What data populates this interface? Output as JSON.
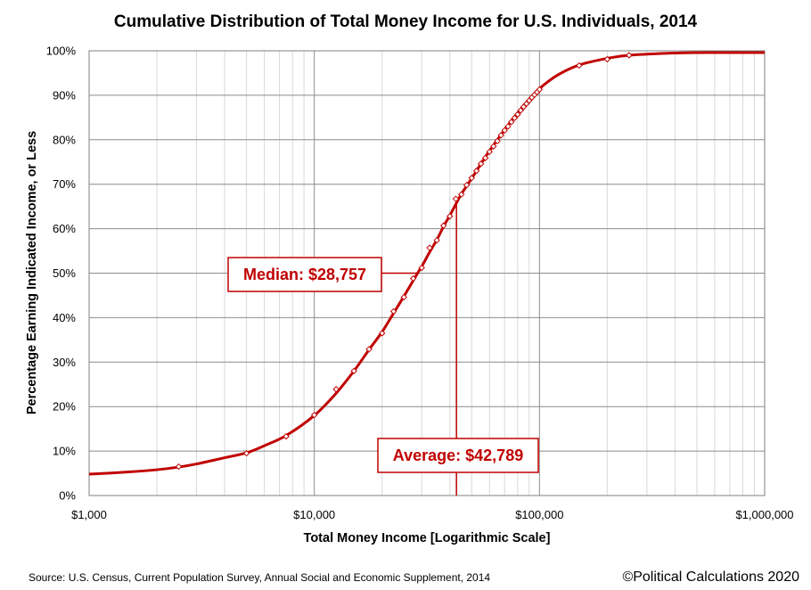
{
  "chart_data": {
    "type": "line",
    "title": "Cumulative Distribution of Total Money Income for U.S. Individuals, 2014",
    "xlabel": "Total Money Income [Logarithmic Scale]",
    "ylabel": "Percentage Earning Indicated Income, or Less",
    "x_scale": "log",
    "xlim": [
      1000,
      1000000
    ],
    "ylim": [
      0,
      100
    ],
    "x_tick_values": [
      1000,
      10000,
      100000,
      1000000
    ],
    "x_tick_labels": [
      "$1,000",
      "$10,000",
      "$100,000",
      "$1,000,000"
    ],
    "y_tick_values": [
      0,
      10,
      20,
      30,
      40,
      50,
      60,
      70,
      80,
      90,
      100
    ],
    "y_tick_labels": [
      "0%",
      "10%",
      "20%",
      "30%",
      "40%",
      "50%",
      "60%",
      "70%",
      "80%",
      "90%",
      "100%"
    ],
    "grid": true,
    "legend": "none",
    "colors": {
      "curve": "#c00000",
      "marker_fill": "#ffffff",
      "marker_stroke": "#c00000",
      "grid_major": "#8c8c8c",
      "grid_minor": "#d9d9d9"
    },
    "series": [
      {
        "style": "smooth-line",
        "x": [
          1000,
          1500,
          2000,
          2500,
          3000,
          4000,
          5000,
          6000,
          7500,
          10000,
          12500,
          15000,
          17500,
          20000,
          22500,
          25000,
          28757,
          30000,
          32500,
          35000,
          37500,
          40000,
          42500,
          45000,
          50000,
          55000,
          60000,
          70000,
          80000,
          90000,
          100000,
          120000,
          150000,
          200000,
          250000,
          400000,
          600000,
          1000000
        ],
        "y": [
          4.8,
          5.3,
          5.8,
          6.4,
          7.1,
          8.5,
          9.6,
          11.2,
          13.5,
          18.0,
          23.0,
          28.0,
          32.8,
          36.8,
          41.0,
          44.8,
          50.0,
          51.5,
          54.7,
          57.5,
          60.5,
          63.0,
          65.5,
          67.8,
          71.3,
          74.6,
          77.5,
          82.2,
          86.0,
          89.0,
          91.5,
          94.5,
          96.8,
          98.3,
          99.0,
          99.5,
          99.6,
          99.6
        ]
      },
      {
        "style": "markers",
        "x": [
          2500,
          5000,
          7500,
          10000,
          12500,
          15000,
          17500,
          20000,
          22500,
          25000,
          27500,
          30000,
          32500,
          35000,
          37500,
          40000,
          42500,
          45000,
          47500,
          50000,
          52500,
          55000,
          57500,
          60000,
          62500,
          65000,
          67500,
          70000,
          72500,
          75000,
          77500,
          80000,
          82500,
          85000,
          87500,
          90000,
          92500,
          95000,
          97500,
          100000,
          150000,
          200000,
          250000
        ],
        "y": [
          6.5,
          9.5,
          13.3,
          18.1,
          23.9,
          28.0,
          32.9,
          36.5,
          41.4,
          44.6,
          48.8,
          51.2,
          55.7,
          57.4,
          60.7,
          62.8,
          66.7,
          67.7,
          69.8,
          71.4,
          73.0,
          74.6,
          75.9,
          77.3,
          78.5,
          79.7,
          81.0,
          82.1,
          83.0,
          84.0,
          84.9,
          85.7,
          86.6,
          87.4,
          88.1,
          88.8,
          89.5,
          90.1,
          90.7,
          91.3,
          96.7,
          98.1,
          99.0
        ]
      }
    ],
    "annotations": [
      {
        "text": "Median:  $28,757",
        "x": 28757,
        "y": 50
      },
      {
        "text": "Average: $42,789",
        "x": 42789,
        "y": 66.8
      }
    ]
  },
  "footer": {
    "source": "Source: U.S. Census, Current Population Survey, Annual Social and Economic Supplement, 2014",
    "copyright": "©Political Calculations 2020"
  }
}
